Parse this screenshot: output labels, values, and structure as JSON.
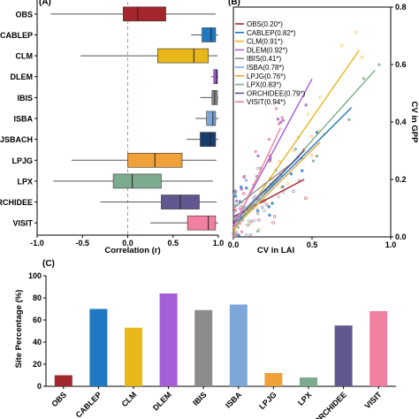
{
  "chart_data": [
    {
      "panel": "(A)",
      "type": "boxplot",
      "xlabel": "Correlation (r)",
      "xlim": [
        -1.0,
        1.0
      ],
      "xticks": [
        "-1.0",
        "-0.5",
        "0.0",
        "0.5",
        "1.0"
      ],
      "categories": [
        "OBS",
        "CABLEP",
        "CLM",
        "DLEM",
        "IBIS",
        "ISBA",
        "JSBACH",
        "LPJG",
        "LPX",
        "ORCHIDEE",
        "VISIT"
      ],
      "boxes": [
        {
          "name": "OBS",
          "color": "#a3262c",
          "whislo": -0.85,
          "q1": -0.05,
          "med": 0.11,
          "q3": 0.42,
          "whishi": 0.97
        },
        {
          "name": "CABLEP",
          "color": "#1f78c1",
          "whislo": 0.7,
          "q1": 0.82,
          "med": 0.92,
          "q3": 0.97,
          "whishi": 1.0
        },
        {
          "name": "CLM",
          "color": "#e8b719",
          "whislo": -0.52,
          "q1": 0.33,
          "med": 0.73,
          "q3": 0.89,
          "whishi": 0.99
        },
        {
          "name": "DLEM",
          "color": "#a45fd6",
          "whislo": 0.92,
          "q1": 0.95,
          "med": 0.98,
          "q3": 0.99,
          "whishi": 1.0
        },
        {
          "name": "IBIS",
          "color": "#8c8c8c",
          "whislo": 0.8,
          "q1": 0.93,
          "med": 0.96,
          "q3": 0.99,
          "whishi": 1.0
        },
        {
          "name": "ISBA",
          "color": "#7da7d9",
          "whislo": 0.75,
          "q1": 0.87,
          "med": 0.94,
          "q3": 0.97,
          "whishi": 1.0
        },
        {
          "name": "JSBACH",
          "color": "#173e6c",
          "whislo": 0.65,
          "q1": 0.8,
          "med": 0.91,
          "q3": 0.97,
          "whishi": 1.0
        },
        {
          "name": "LPJG",
          "color": "#f0a038",
          "whislo": -0.62,
          "q1": 0.0,
          "med": 0.3,
          "q3": 0.6,
          "whishi": 0.98
        },
        {
          "name": "LPX",
          "color": "#7dab8f",
          "whislo": -0.82,
          "q1": -0.16,
          "med": 0.05,
          "q3": 0.37,
          "whishi": 0.94
        },
        {
          "name": "ORCHIDEE",
          "color": "#62568f",
          "whislo": -0.3,
          "q1": 0.37,
          "med": 0.58,
          "q3": 0.79,
          "whishi": 0.98
        },
        {
          "name": "VISIT",
          "color": "#f07fa0",
          "whislo": 0.25,
          "q1": 0.66,
          "med": 0.89,
          "q3": 0.97,
          "whishi": 1.0
        }
      ],
      "reference_line": {
        "x": 0.0,
        "style": "dashed",
        "color": "#d98b8b"
      }
    },
    {
      "panel": "(B)",
      "type": "scatter",
      "xlabel": "CV in LAI",
      "ylabel": "CV in GPP",
      "xlim": [
        0,
        1.0
      ],
      "ylim": [
        0,
        0.8
      ],
      "xticks": [
        "0.0",
        "0.5",
        "1.0"
      ],
      "yticks": [
        "0.0",
        "0.2",
        "0.4",
        "0.6",
        "0.8"
      ],
      "legend_position": "top-left",
      "series": [
        {
          "name": "OBS(0.20*)",
          "color": "#a3262c",
          "fit": [
            [
              0.0,
              0.07
            ],
            [
              0.45,
              0.2
            ]
          ]
        },
        {
          "name": "CABLEP(0.82*)",
          "color": "#1f78c1",
          "fit": [
            [
              0.0,
              0.04
            ],
            [
              0.75,
              0.45
            ]
          ]
        },
        {
          "name": "CLM(0.91*)",
          "color": "#e8b719",
          "fit": [
            [
              0.0,
              0.02
            ],
            [
              0.8,
              0.65
            ]
          ]
        },
        {
          "name": "DLEM(0.92*)",
          "color": "#a45fd6",
          "fit": [
            [
              0.0,
              0.04
            ],
            [
              0.5,
              0.55
            ]
          ]
        },
        {
          "name": "IBIS(0.41*)",
          "color": "#8c8c8c",
          "fit": [
            [
              0.0,
              0.1
            ],
            [
              0.38,
              0.26
            ]
          ]
        },
        {
          "name": "ISBA(0.78*)",
          "color": "#7da7d9",
          "fit": [
            [
              0.0,
              0.06
            ],
            [
              0.42,
              0.28
            ]
          ]
        },
        {
          "name": "LPJG(0.76*)",
          "color": "#f0a038",
          "fit": [
            [
              0.0,
              0.03
            ],
            [
              0.55,
              0.33
            ]
          ]
        },
        {
          "name": "LPX(0.83*)",
          "color": "#7dab8f",
          "fit": [
            [
              0.0,
              0.03
            ],
            [
              0.9,
              0.58
            ]
          ]
        },
        {
          "name": "ORCHIDEE(0.79*)",
          "color": "#62568f",
          "fit": [
            [
              0.0,
              0.05
            ],
            [
              0.45,
              0.3
            ]
          ]
        },
        {
          "name": "VISIT(0.94*)",
          "color": "#f07fa0",
          "fit": [
            [
              0.0,
              0.03
            ],
            [
              0.3,
              0.38
            ]
          ]
        }
      ]
    },
    {
      "panel": "(C)",
      "type": "bar",
      "ylabel": "Site Percentage (%)",
      "ylim": [
        0,
        100
      ],
      "yticks": [
        "0",
        "20",
        "40",
        "60",
        "80",
        "100"
      ],
      "categories": [
        "OBS",
        "CABLEP",
        "CLM",
        "DLEM",
        "IBIS",
        "ISBA",
        "LPJG",
        "LPX",
        "ORCHIDEE",
        "VISIT"
      ],
      "values": [
        10,
        70,
        53,
        84,
        69,
        74,
        12,
        8,
        55,
        68
      ],
      "colors": [
        "#a3262c",
        "#1f78c1",
        "#e8b719",
        "#a45fd6",
        "#8c8c8c",
        "#7da7d9",
        "#f0a038",
        "#7dab8f",
        "#62568f",
        "#f07fa0"
      ]
    }
  ]
}
